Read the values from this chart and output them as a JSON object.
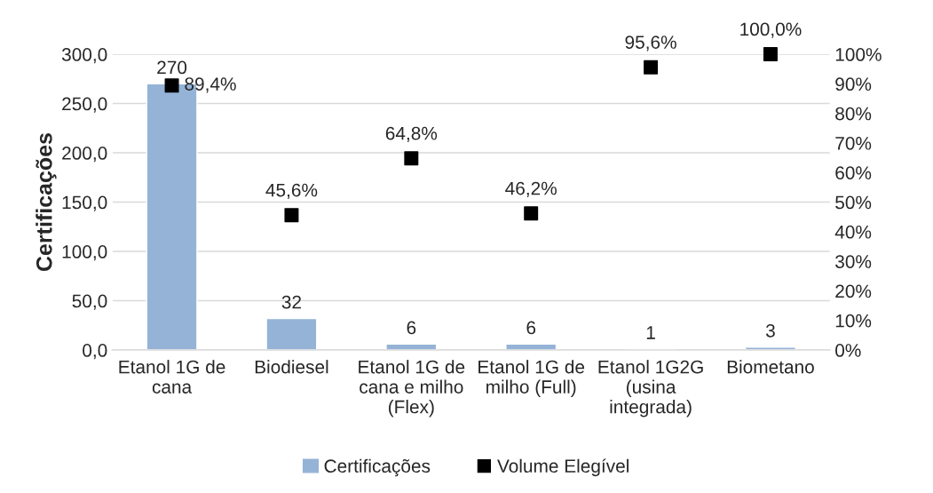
{
  "chart_data": {
    "type": "bar",
    "categories": [
      "Etanol 1G de\ncana",
      "Biodiesel",
      "Etanol 1G de\ncana e milho\n(Flex)",
      "Etanol 1G de\nmilho (Full)",
      "Etanol 1G2G\n(usina\nintegrada)",
      "Biometano"
    ],
    "ylabel": "Certificações",
    "ylim": [
      0,
      300
    ],
    "yticks": [
      {
        "value": 0,
        "label": "0,0"
      },
      {
        "value": 50,
        "label": "50,0"
      },
      {
        "value": 100,
        "label": "100,0"
      },
      {
        "value": 150,
        "label": "150,0"
      },
      {
        "value": 200,
        "label": "200,0"
      },
      {
        "value": 250,
        "label": "250,0"
      },
      {
        "value": 300,
        "label": "300,0"
      }
    ],
    "y2lim": [
      0,
      100
    ],
    "y2ticks": [
      {
        "value": 0,
        "label": "0%"
      },
      {
        "value": 10,
        "label": "10%"
      },
      {
        "value": 20,
        "label": "20%"
      },
      {
        "value": 30,
        "label": "30%"
      },
      {
        "value": 40,
        "label": "40%"
      },
      {
        "value": 50,
        "label": "50%"
      },
      {
        "value": 60,
        "label": "60%"
      },
      {
        "value": 70,
        "label": "70%"
      },
      {
        "value": 80,
        "label": "80%"
      },
      {
        "value": 90,
        "label": "90%"
      },
      {
        "value": 100,
        "label": "100%"
      }
    ],
    "grid": "y",
    "legend": "bottom",
    "series": [
      {
        "name": "Certificações",
        "color": "#95b3d7",
        "values": [
          270,
          32,
          6,
          6,
          1,
          3
        ],
        "value_labels": [
          "270",
          "32",
          "6",
          "6",
          "1",
          "3"
        ]
      },
      {
        "name": "Volume Elegível",
        "type": "scatter",
        "axis": "y2",
        "marker": "square",
        "color": "#000000",
        "values": [
          89.4,
          45.6,
          64.8,
          46.2,
          95.6,
          100.0
        ],
        "value_labels": [
          "89,4%",
          "45,6%",
          "64,8%",
          "46,2%",
          "95,6%",
          "100,0%"
        ]
      }
    ]
  }
}
